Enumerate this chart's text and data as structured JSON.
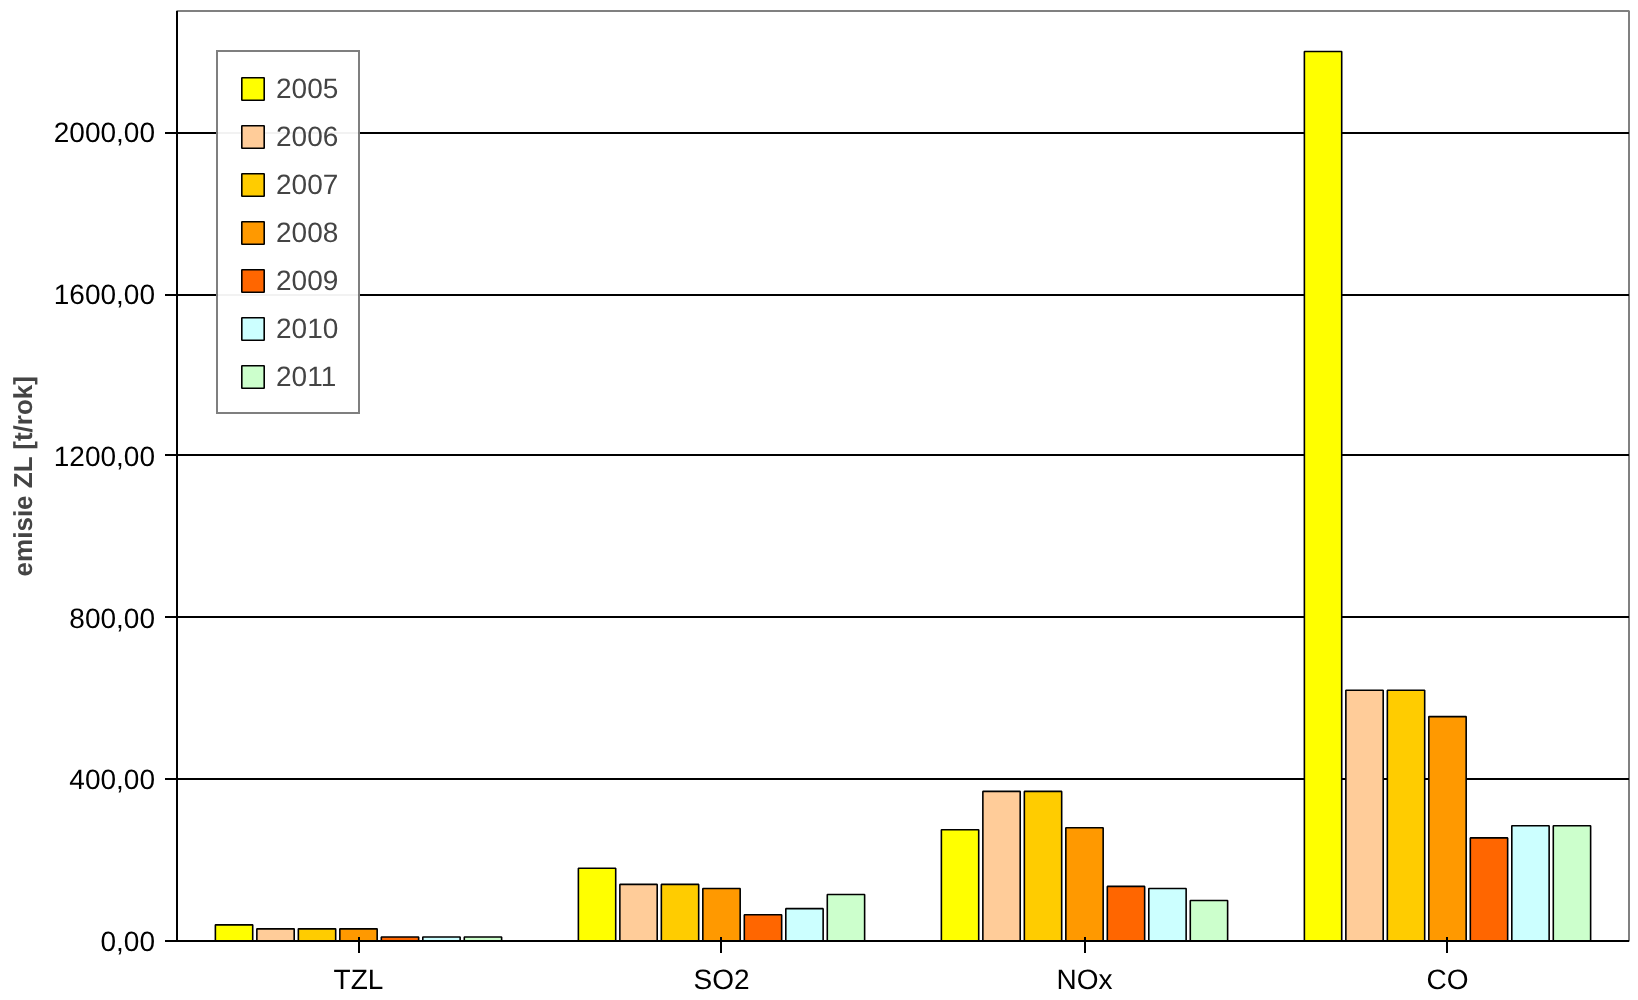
{
  "chart_data": {
    "type": "bar",
    "ylabel": "emisie ZL [t/rok]",
    "categories": [
      "TZL",
      "SO2",
      "NOx",
      "CO"
    ],
    "series": [
      {
        "name": "2005",
        "color": "#ffff00",
        "values": [
          40,
          180,
          275,
          2200
        ]
      },
      {
        "name": "2006",
        "color": "#ffcc99",
        "values": [
          30,
          140,
          370,
          620
        ]
      },
      {
        "name": "2007",
        "color": "#ffcc00",
        "values": [
          30,
          140,
          370,
          620
        ]
      },
      {
        "name": "2008",
        "color": "#ff9900",
        "values": [
          30,
          130,
          280,
          555
        ]
      },
      {
        "name": "2009",
        "color": "#ff6600",
        "values": [
          10,
          65,
          135,
          255
        ]
      },
      {
        "name": "2010",
        "color": "#ccffff",
        "values": [
          10,
          80,
          130,
          285
        ]
      },
      {
        "name": "2011",
        "color": "#ccffcc",
        "values": [
          10,
          115,
          100,
          285
        ]
      }
    ],
    "ylim": [
      0,
      2300
    ],
    "yticks": [
      {
        "value": 0,
        "label": "0,00"
      },
      {
        "value": 400,
        "label": "400,00"
      },
      {
        "value": 800,
        "label": "800,00"
      },
      {
        "value": 1200,
        "label": "1200,00"
      },
      {
        "value": 1600,
        "label": "1600,00"
      },
      {
        "value": 2000,
        "label": "2000,00"
      }
    ],
    "grid": "y",
    "legend": "top left"
  }
}
